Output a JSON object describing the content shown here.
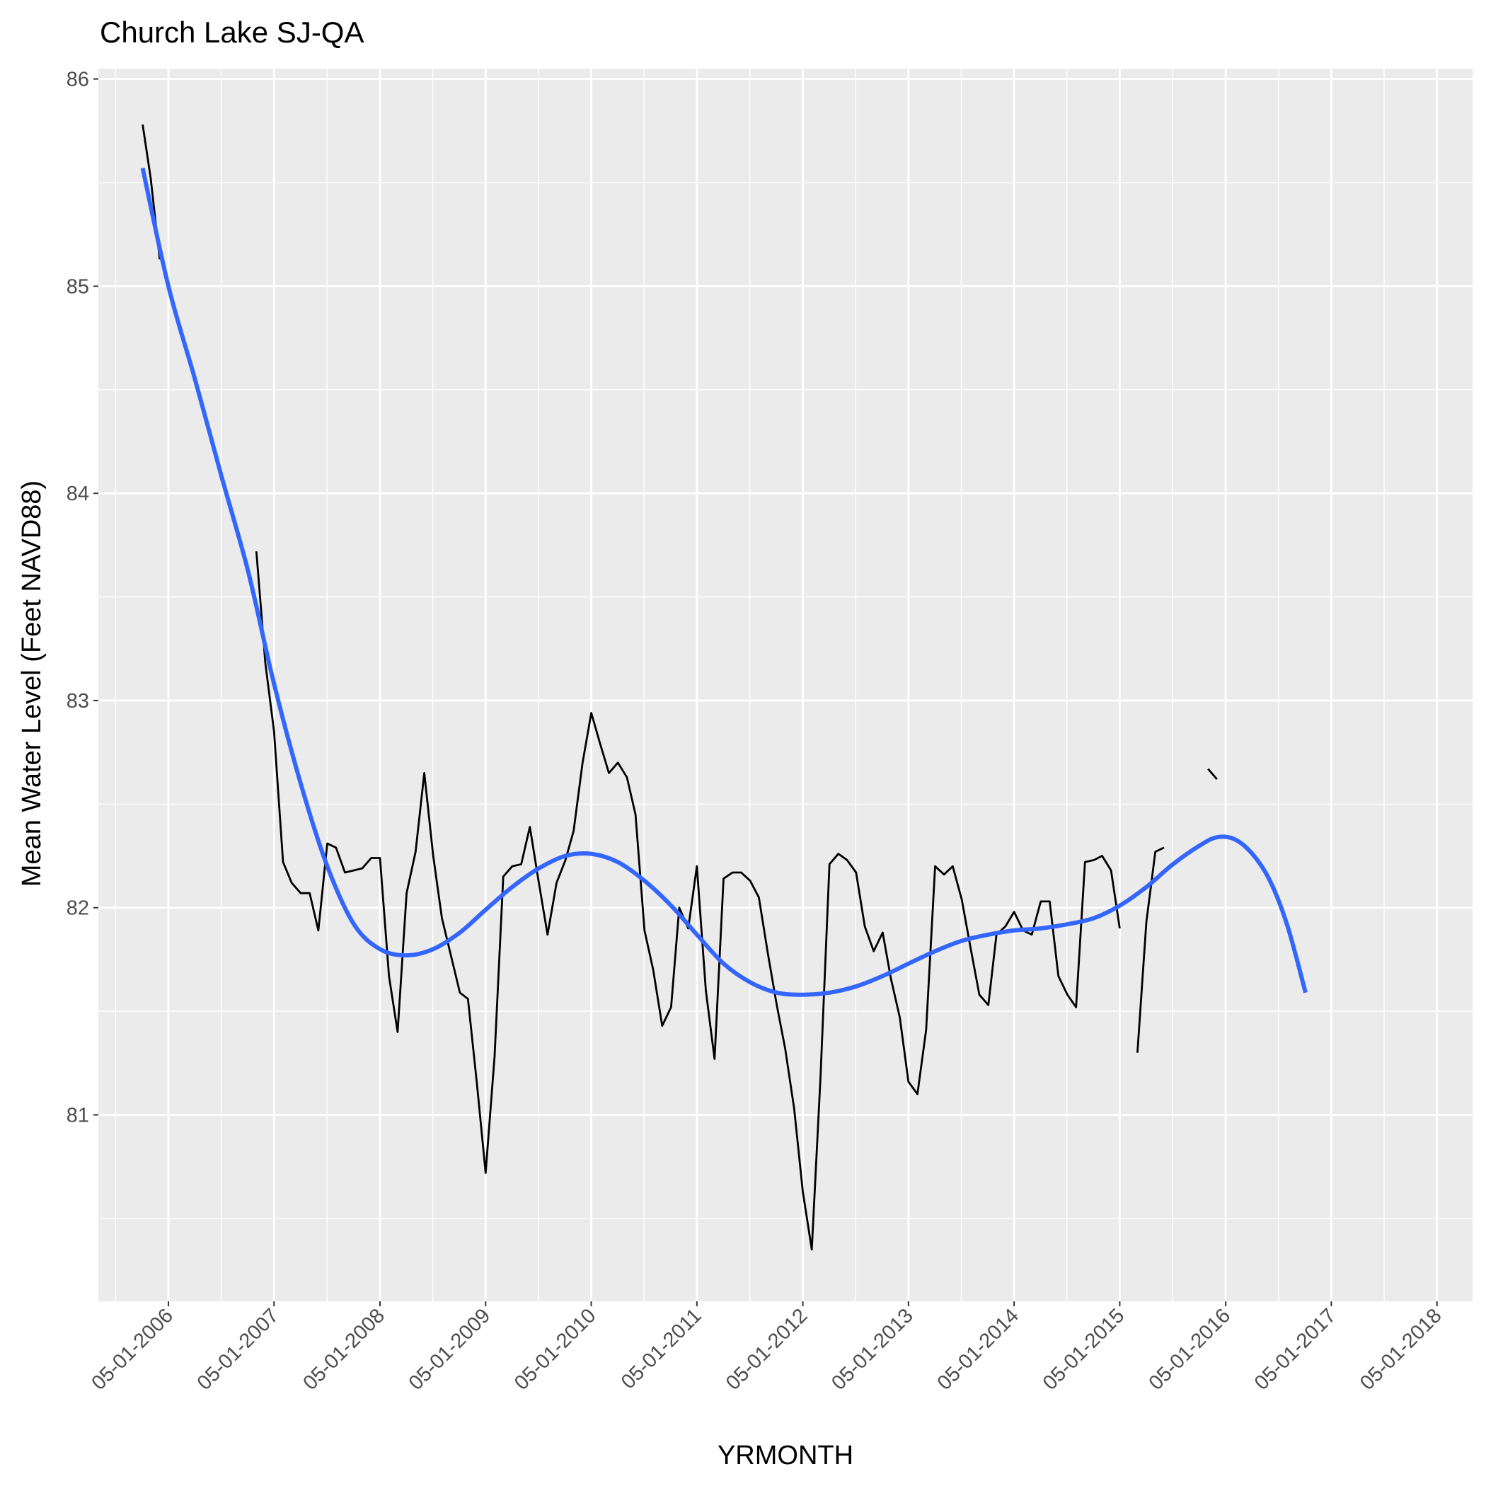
{
  "chart_data": {
    "type": "line",
    "title": "Church Lake SJ-QA",
    "xlabel": "YRMONTH",
    "ylabel": "Mean Water Level (Feet NAVD88)",
    "x_ticks": [
      "05-01-2006",
      "05-01-2007",
      "05-01-2008",
      "05-01-2009",
      "05-01-2010",
      "05-01-2011",
      "05-01-2012",
      "05-01-2013",
      "05-01-2014",
      "05-01-2015",
      "05-01-2016",
      "05-01-2017",
      "05-01-2018"
    ],
    "y_ticks": [
      81,
      82,
      83,
      84,
      85,
      86
    ],
    "ylim": [
      80.1,
      86.05
    ],
    "xlim": [
      "2005-09-01",
      "2018-09-01"
    ],
    "grid": true,
    "background": "#ebebeb",
    "colors": {
      "observed": "#000000",
      "smooth": "#3366ff"
    },
    "series": [
      {
        "kind": "observed",
        "segments": [
          [
            [
              "2006-02-01",
              85.78
            ],
            [
              "2006-03-01",
              85.52
            ],
            [
              "2006-04-01",
              85.13
            ]
          ],
          [
            [
              "2007-03-01",
              83.72
            ],
            [
              "2007-04-01",
              83.18
            ],
            [
              "2007-05-01",
              82.85
            ],
            [
              "2007-06-01",
              82.22
            ],
            [
              "2007-07-01",
              82.12
            ],
            [
              "2007-08-01",
              82.07
            ],
            [
              "2007-09-01",
              82.07
            ],
            [
              "2007-10-01",
              81.89
            ],
            [
              "2007-11-01",
              82.31
            ],
            [
              "2007-12-01",
              82.29
            ],
            [
              "2008-01-01",
              82.17
            ],
            [
              "2008-02-01",
              82.18
            ],
            [
              "2008-03-01",
              82.19
            ],
            [
              "2008-04-01",
              82.24
            ],
            [
              "2008-05-01",
              82.24
            ],
            [
              "2008-06-01",
              81.67
            ],
            [
              "2008-07-01",
              81.4
            ],
            [
              "2008-08-01",
              82.07
            ],
            [
              "2008-09-01",
              82.27
            ],
            [
              "2008-10-01",
              82.65
            ],
            [
              "2008-11-01",
              82.25
            ],
            [
              "2008-12-01",
              81.95
            ],
            [
              "2009-01-01",
              81.77
            ],
            [
              "2009-02-01",
              81.59
            ],
            [
              "2009-03-01",
              81.56
            ],
            [
              "2009-04-01",
              81.15
            ],
            [
              "2009-05-01",
              80.72
            ],
            [
              "2009-06-01",
              81.28
            ],
            [
              "2009-07-01",
              82.15
            ],
            [
              "2009-08-01",
              82.2
            ],
            [
              "2009-09-01",
              82.21
            ],
            [
              "2009-10-01",
              82.39
            ],
            [
              "2009-11-01",
              82.12
            ],
            [
              "2009-12-01",
              81.87
            ],
            [
              "2010-01-01",
              82.12
            ],
            [
              "2010-02-01",
              82.23
            ],
            [
              "2010-03-01",
              82.37
            ],
            [
              "2010-04-01",
              82.7
            ],
            [
              "2010-05-01",
              82.94
            ],
            [
              "2010-06-01",
              82.79
            ],
            [
              "2010-07-01",
              82.65
            ],
            [
              "2010-08-01",
              82.7
            ],
            [
              "2010-09-01",
              82.63
            ],
            [
              "2010-10-01",
              82.45
            ],
            [
              "2010-11-01",
              81.89
            ],
            [
              "2010-12-01",
              81.7
            ],
            [
              "2011-01-01",
              81.43
            ],
            [
              "2011-02-01",
              81.52
            ],
            [
              "2011-03-01",
              82.0
            ],
            [
              "2011-04-01",
              81.9
            ],
            [
              "2011-05-01",
              82.2
            ],
            [
              "2011-06-01",
              81.6
            ],
            [
              "2011-07-01",
              81.27
            ],
            [
              "2011-08-01",
              82.14
            ],
            [
              "2011-09-01",
              82.17
            ],
            [
              "2011-10-01",
              82.17
            ],
            [
              "2011-11-01",
              82.13
            ],
            [
              "2011-12-01",
              82.05
            ],
            [
              "2012-01-01",
              81.78
            ],
            [
              "2012-02-01",
              81.53
            ],
            [
              "2012-03-01",
              81.32
            ],
            [
              "2012-04-01",
              81.03
            ],
            [
              "2012-05-01",
              80.63
            ],
            [
              "2012-06-01",
              80.35
            ],
            [
              "2012-07-01",
              81.18
            ],
            [
              "2012-08-01",
              82.21
            ],
            [
              "2012-09-01",
              82.26
            ],
            [
              "2012-10-01",
              82.23
            ],
            [
              "2012-11-01",
              82.17
            ],
            [
              "2012-12-01",
              81.91
            ],
            [
              "2013-01-01",
              81.79
            ],
            [
              "2013-02-01",
              81.88
            ],
            [
              "2013-03-01",
              81.66
            ],
            [
              "2013-04-01",
              81.47
            ],
            [
              "2013-05-01",
              81.16
            ],
            [
              "2013-06-01",
              81.1
            ],
            [
              "2013-07-01",
              81.41
            ],
            [
              "2013-08-01",
              82.2
            ],
            [
              "2013-09-01",
              82.16
            ],
            [
              "2013-10-01",
              82.2
            ],
            [
              "2013-11-01",
              82.04
            ],
            [
              "2013-12-01",
              81.81
            ],
            [
              "2014-01-01",
              81.58
            ],
            [
              "2014-02-01",
              81.53
            ],
            [
              "2014-03-01",
              81.87
            ],
            [
              "2014-04-01",
              81.91
            ],
            [
              "2014-05-01",
              81.98
            ],
            [
              "2014-06-01",
              81.89
            ],
            [
              "2014-07-01",
              81.87
            ],
            [
              "2014-08-01",
              82.03
            ],
            [
              "2014-09-01",
              82.03
            ],
            [
              "2014-10-01",
              81.67
            ],
            [
              "2014-11-01",
              81.58
            ],
            [
              "2014-12-01",
              81.52
            ],
            [
              "2015-01-01",
              82.22
            ],
            [
              "2015-02-01",
              82.23
            ],
            [
              "2015-03-01",
              82.25
            ],
            [
              "2015-04-01",
              82.18
            ],
            [
              "2015-05-01",
              81.9
            ]
          ],
          [
            [
              "2015-07-01",
              81.3
            ],
            [
              "2015-08-01",
              81.93
            ],
            [
              "2015-09-01",
              82.27
            ],
            [
              "2015-10-01",
              82.29
            ]
          ],
          [
            [
              "2016-03-01",
              82.67
            ],
            [
              "2016-04-01",
              82.62
            ]
          ]
        ]
      },
      {
        "kind": "smooth",
        "points": [
          [
            "2006-02-01",
            85.57
          ],
          [
            "2006-05-01",
            85.0
          ],
          [
            "2006-08-01",
            84.55
          ],
          [
            "2006-11-01",
            84.08
          ],
          [
            "2007-02-01",
            83.62
          ],
          [
            "2007-05-01",
            83.08
          ],
          [
            "2007-08-01",
            82.6
          ],
          [
            "2007-11-01",
            82.2
          ],
          [
            "2008-02-01",
            81.92
          ],
          [
            "2008-05-01",
            81.8
          ],
          [
            "2008-08-01",
            81.77
          ],
          [
            "2008-11-01",
            81.8
          ],
          [
            "2009-02-01",
            81.88
          ],
          [
            "2009-05-01",
            81.99
          ],
          [
            "2009-08-01",
            82.1
          ],
          [
            "2009-11-01",
            82.19
          ],
          [
            "2010-02-01",
            82.25
          ],
          [
            "2010-05-01",
            82.26
          ],
          [
            "2010-08-01",
            82.22
          ],
          [
            "2010-11-01",
            82.13
          ],
          [
            "2011-02-01",
            82.01
          ],
          [
            "2011-05-01",
            81.87
          ],
          [
            "2011-08-01",
            81.73
          ],
          [
            "2011-11-01",
            81.64
          ],
          [
            "2012-02-01",
            81.59
          ],
          [
            "2012-05-01",
            81.58
          ],
          [
            "2012-08-01",
            81.59
          ],
          [
            "2012-11-01",
            81.62
          ],
          [
            "2013-02-01",
            81.67
          ],
          [
            "2013-05-01",
            81.73
          ],
          [
            "2013-08-01",
            81.79
          ],
          [
            "2013-11-01",
            81.84
          ],
          [
            "2014-02-01",
            81.87
          ],
          [
            "2014-05-01",
            81.89
          ],
          [
            "2014-08-01",
            81.9
          ],
          [
            "2014-11-01",
            81.92
          ],
          [
            "2015-02-01",
            81.95
          ],
          [
            "2015-05-01",
            82.01
          ],
          [
            "2015-08-01",
            82.1
          ],
          [
            "2015-11-01",
            82.21
          ],
          [
            "2016-02-01",
            82.3
          ],
          [
            "2016-04-01",
            82.34
          ],
          [
            "2016-06-01",
            82.33
          ],
          [
            "2016-08-01",
            82.26
          ],
          [
            "2016-10-01",
            82.13
          ],
          [
            "2016-12-01",
            81.91
          ],
          [
            "2017-02-01",
            81.59
          ]
        ]
      }
    ]
  }
}
